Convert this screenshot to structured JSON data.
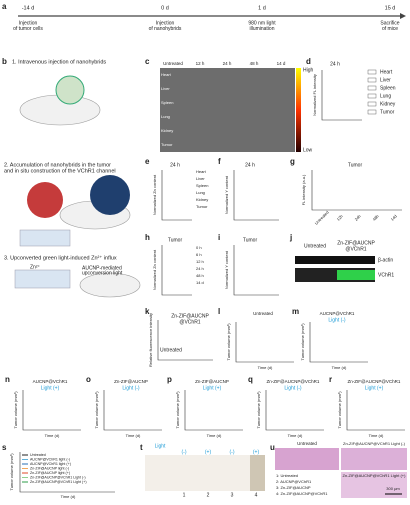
{
  "a": {
    "label": "a",
    "times": [
      "-14 d",
      "0 d",
      "1 d",
      "15 d"
    ],
    "events": [
      [
        "Injection",
        "of tumor cells"
      ],
      [
        "Injection",
        "of nanohybrids"
      ],
      [
        "980 nm light",
        "illumination"
      ],
      [
        "Sacrifice",
        "of mice"
      ]
    ]
  },
  "b": {
    "label": "b",
    "step1": "1. Intravenous injection of nanohybrids",
    "step2": [
      "2. Accumulation of nanohybrids in the tumor",
      "and in situ construction of the VChR1 channel"
    ],
    "step3": "3. Upconverted green light-induced Zn²⁺ influx",
    "zn": "Zn²⁺",
    "upconversion": [
      "AUCNP-mediated",
      "upconversion light"
    ]
  },
  "c": {
    "label": "c",
    "columns": [
      "Untreated",
      "12 h",
      "24 h",
      "48 h",
      "14 d"
    ],
    "organs": [
      "Heart",
      "Liver",
      "Spleen",
      "Lung",
      "Kidney",
      "Tumor"
    ],
    "scale": [
      "High",
      "Low"
    ]
  },
  "d": {
    "label": "d",
    "title": "24 h",
    "ylabel": "Normalized FL intensity",
    "legend": [
      "Heart",
      "Liver",
      "Spleen",
      "Lung",
      "Kidney",
      "Tumor"
    ]
  },
  "e": {
    "label": "e",
    "title": "24 h",
    "ylabel": "Normalized Zn content",
    "legend": [
      "Heart",
      "Liver",
      "Spleen",
      "Lung",
      "Kidney",
      "Tumor"
    ]
  },
  "f": {
    "label": "f",
    "title": "24 h",
    "ylabel": "Normalized Y content"
  },
  "g": {
    "label": "g",
    "title": "Tumor",
    "ylabel": "FL intensity (a.u.)",
    "categories": [
      "Untreated",
      "12h",
      "24h",
      "48h",
      "14d"
    ]
  },
  "h": {
    "label": "h",
    "title": "Tumor",
    "ylabel": "Normalized Zn content",
    "legend": [
      "0 h",
      "6 h",
      "12 h",
      "24 h",
      "48 h",
      "14 d"
    ]
  },
  "i": {
    "label": "i",
    "title": "Tumor",
    "ylabel": "Normalized Y content"
  },
  "j": {
    "label": "j",
    "groups": [
      "Untreated",
      [
        "Zn-ZIF@AUCNP",
        "@VChR1"
      ]
    ],
    "bands": [
      "β-actin",
      "VChR1"
    ]
  },
  "k": {
    "label": "k",
    "series": [
      [
        "Zn-ZIF@AUCNP",
        "@VChR1"
      ],
      "Untreated"
    ],
    "ylabel": "Relative fluorescence intensity"
  },
  "growth": {
    "xlabel": "Time (d)",
    "ylabel": "Tumor volume (mm³)",
    "panels": [
      {
        "label": "l",
        "title": "Untreated"
      },
      {
        "label": "m",
        "title": "AUCNP@VChR1",
        "light": "Light (-)"
      },
      {
        "label": "n",
        "title": "AUCNP@VChR1",
        "light": "Light (+)"
      },
      {
        "label": "o",
        "title": "Zn-ZIF@AUCNP",
        "light": "Light (-)"
      },
      {
        "label": "p",
        "title": "Zn-ZIF@AUCNP",
        "light": "Light (+)"
      },
      {
        "label": "q",
        "title": "Zn-ZIF@AUCNP@VChR1",
        "light": "Light (-)"
      },
      {
        "label": "r",
        "title": "Zn-ZIF@AUCNP@VChR1",
        "light": "Light (+)"
      }
    ]
  },
  "s": {
    "label": "s",
    "legend": [
      "Untreated",
      "AUCNP@VChR1 light (-)",
      "AUCNP@VChR1 light (+)",
      "Zn-ZIF@AUCNP light (-)",
      "Zn-ZIF@AUCNP light (+)",
      "Zn-ZIF@AUCNP@VChR1 Light (-)",
      "Zn-ZIF@AUCNP@VChR1 Light (+)"
    ],
    "colors": [
      "#222222",
      "#5fb0d8",
      "#2a6fb5",
      "#f2a65a",
      "#e04a2a",
      "#8fd18f",
      "#2e9d4a"
    ],
    "xlabel": "Time (d)",
    "ylabel": "Tumor volume (mm³)"
  },
  "t": {
    "label": "t",
    "light": [
      "Light",
      "(-)",
      "(+)",
      "(-)",
      "(+)"
    ],
    "groups": [
      "1",
      "2",
      "3",
      "4"
    ]
  },
  "u": {
    "label": "u",
    "panels": [
      "Untreated",
      "Zn-ZIF@AUCNP@VChR1 Light (-)",
      "Zn-ZIF@AUCNP@VChR1 Light (+)"
    ],
    "legend": [
      "1: Untreated",
      "2: AUCNP@VChR1",
      "3: Zn-ZIF@AUCNP",
      "4: Zn-ZIF@AUCNP@VChR1"
    ],
    "scalebar": "300 μm"
  }
}
